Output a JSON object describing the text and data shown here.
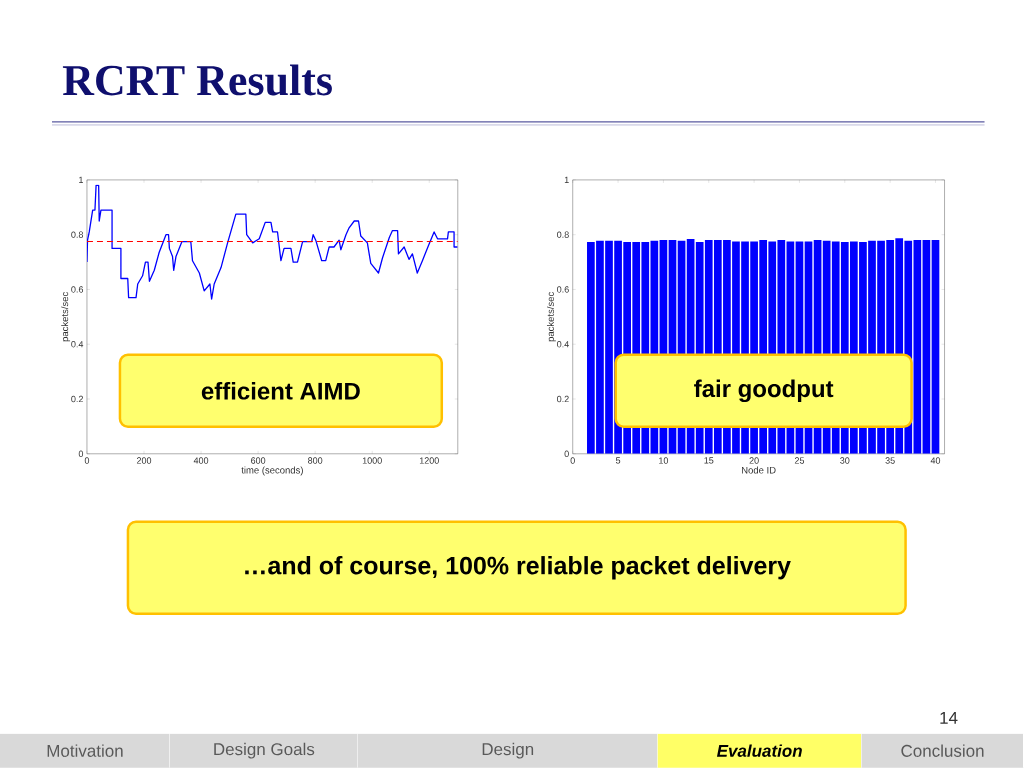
{
  "chart_data": [
    {
      "type": "line",
      "title": "RCRT Results",
      "xlabel": "time (seconds)",
      "ylabel": "packets/sec",
      "xlim": [
        0,
        1300
      ],
      "ylim": [
        0,
        1
      ],
      "xticks": [
        0,
        200,
        400,
        600,
        800,
        1000,
        1200
      ],
      "yticks": [
        0,
        0.2,
        0.4,
        0.6,
        0.8,
        1
      ],
      "series": [
        {
          "color": "#0000ff",
          "x": [
            0,
            2,
            8,
            20,
            28,
            32,
            41,
            43,
            49,
            88,
            88,
            119,
            119,
            143,
            146,
            172,
            178,
            195,
            205,
            214,
            219,
            236,
            253,
            277,
            286,
            289,
            300,
            304,
            312,
            333,
            364,
            370,
            394,
            411,
            431,
            437,
            446,
            470,
            493,
            522,
            557,
            560,
            581,
            604,
            625,
            645,
            651,
            668,
            680,
            691,
            715,
            723,
            738,
            756,
            788,
            793,
            802,
            823,
            837,
            849,
            866,
            884,
            890,
            908,
            919,
            937,
            952,
            960,
            983,
            995,
            1022,
            1036,
            1060,
            1071,
            1089,
            1092,
            1112,
            1129,
            1141,
            1158,
            1176,
            1197,
            1217,
            1229,
            1264,
            1267,
            1287,
            1287,
            1299
          ],
          "values": [
            0.7,
            0.78,
            0.81,
            0.89,
            0.89,
            0.98,
            0.98,
            0.85,
            0.89,
            0.89,
            0.75,
            0.75,
            0.64,
            0.64,
            0.57,
            0.57,
            0.62,
            0.65,
            0.7,
            0.7,
            0.63,
            0.67,
            0.735,
            0.8,
            0.8,
            0.75,
            0.72,
            0.67,
            0.72,
            0.775,
            0.775,
            0.705,
            0.66,
            0.595,
            0.62,
            0.565,
            0.62,
            0.68,
            0.77,
            0.875,
            0.875,
            0.8,
            0.77,
            0.785,
            0.845,
            0.845,
            0.81,
            0.81,
            0.705,
            0.75,
            0.75,
            0.7,
            0.7,
            0.775,
            0.775,
            0.8,
            0.78,
            0.705,
            0.705,
            0.755,
            0.755,
            0.78,
            0.745,
            0.8,
            0.825,
            0.85,
            0.85,
            0.795,
            0.77,
            0.695,
            0.66,
            0.715,
            0.79,
            0.815,
            0.815,
            0.73,
            0.755,
            0.71,
            0.73,
            0.66,
            0.705,
            0.76,
            0.81,
            0.785,
            0.785,
            0.81,
            0.81,
            0.755,
            0.755
          ]
        }
      ],
      "ref_lines": [
        {
          "axis": "y",
          "value": 0.775,
          "color": "#ff0000",
          "line_style": "dashed"
        }
      ],
      "annotations": [
        "efficient AIMD"
      ]
    },
    {
      "type": "bar",
      "xlabel": "Node ID",
      "ylabel": "packets/sec",
      "xlim": [
        0,
        41
      ],
      "ylim": [
        0,
        1
      ],
      "xticks": [
        0,
        5,
        10,
        15,
        20,
        25,
        30,
        35,
        40
      ],
      "yticks": [
        0,
        0.2,
        0.4,
        0.6,
        0.8,
        1
      ],
      "x": [
        2,
        3,
        4,
        5,
        6,
        7,
        8,
        9,
        10,
        11,
        12,
        13,
        14,
        15,
        16,
        17,
        18,
        19,
        20,
        21,
        22,
        23,
        24,
        25,
        26,
        27,
        28,
        29,
        30,
        31,
        32,
        33,
        34,
        35,
        36,
        37,
        38,
        39,
        40
      ],
      "values": [
        0.773,
        0.778,
        0.778,
        0.778,
        0.773,
        0.773,
        0.773,
        0.778,
        0.781,
        0.781,
        0.778,
        0.784,
        0.773,
        0.781,
        0.781,
        0.781,
        0.775,
        0.775,
        0.775,
        0.781,
        0.775,
        0.781,
        0.775,
        0.775,
        0.775,
        0.781,
        0.778,
        0.775,
        0.773,
        0.775,
        0.773,
        0.778,
        0.778,
        0.781,
        0.787,
        0.778,
        0.781,
        0.781,
        0.781
      ],
      "color": "#0000ff",
      "annotations": [
        "fair goodput",
        "…and of course, 100% reliable packet delivery",
        "14",
        "Motivation",
        "Design Goals",
        "Design",
        "Evaluation",
        "Conclusion"
      ]
    }
  ]
}
